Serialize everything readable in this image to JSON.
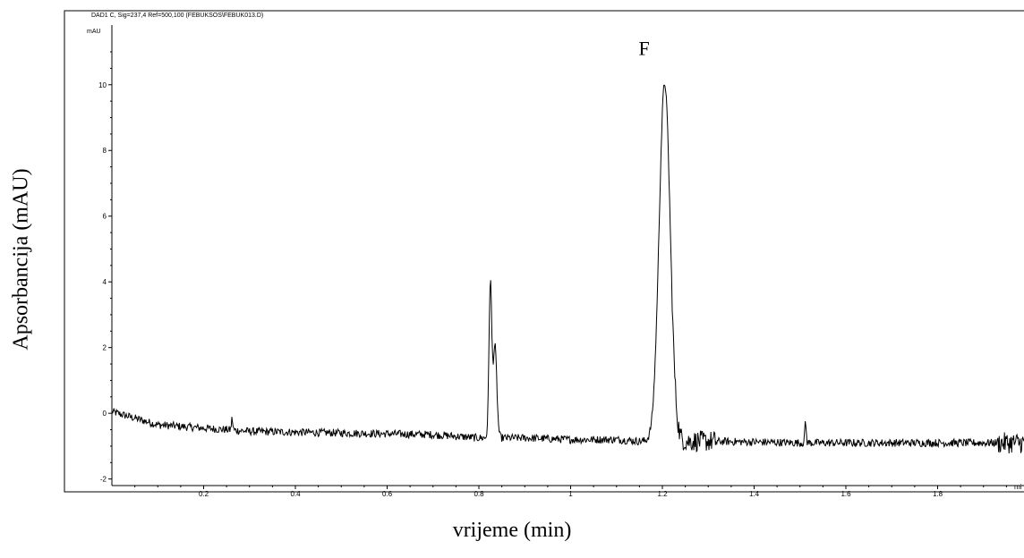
{
  "chart_data": {
    "type": "line",
    "header": "DAD1 C, Sig=237,4 Ref=500,100 (FEBUKSOS\\FEBUK013.D)",
    "y_unit": "mAU",
    "x_unit": "mi",
    "ylabel": "Apsorbancija (mAU)",
    "xlabel": "vrijeme (min)",
    "xlim": [
      0,
      2.0
    ],
    "ylim": [
      -2.2,
      11.3
    ],
    "x_ticks": [
      0.2,
      0.4,
      0.6,
      0.8,
      1,
      1.2,
      1.4,
      1.6,
      1.8
    ],
    "y_ticks": [
      -2,
      0,
      2,
      4,
      6,
      8,
      10
    ],
    "grid": false,
    "annotations": [
      {
        "text": "F",
        "x": 1.16,
        "y": 10.8
      }
    ],
    "series": [
      {
        "baseline": [
          [
            0.0,
            0.05
          ],
          [
            0.1,
            -0.35
          ],
          [
            0.3,
            -0.55
          ],
          [
            0.5,
            -0.6
          ],
          [
            0.7,
            -0.65
          ],
          [
            0.8,
            -0.75
          ],
          [
            0.9,
            -0.75
          ],
          [
            1.0,
            -0.8
          ],
          [
            1.1,
            -0.8
          ],
          [
            1.15,
            -0.85
          ],
          [
            1.3,
            -0.85
          ],
          [
            1.5,
            -0.9
          ],
          [
            1.7,
            -0.9
          ],
          [
            1.9,
            -0.9
          ],
          [
            2.0,
            -0.9
          ]
        ],
        "peaks": [
          {
            "x": 0.262,
            "height": 0.35
          },
          {
            "x": 0.825,
            "height": 4.7
          },
          {
            "x": 0.835,
            "height": 2.8
          },
          {
            "x": 1.205,
            "height": 10.9
          },
          {
            "x": 1.512,
            "height": 0.65
          }
        ]
      }
    ]
  }
}
